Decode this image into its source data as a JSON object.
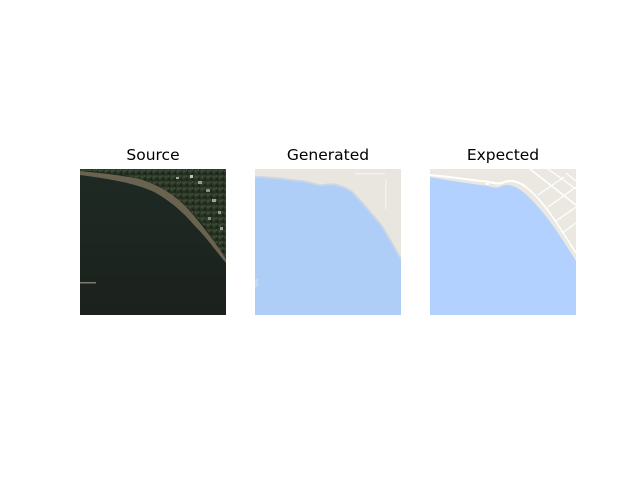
{
  "panels": [
    {
      "title": "Source",
      "kind": "satellite-image"
    },
    {
      "title": "Generated",
      "kind": "generated-map-tile"
    },
    {
      "title": "Expected",
      "kind": "target-map-tile"
    }
  ],
  "colors": {
    "water_map": "#b3d1ff",
    "land_map": "#ebe8e2",
    "road_map": "#ffffff",
    "water_satellite": "#1e2620",
    "vegetation_satellite": "#263222",
    "shore_satellite": "#6a6350"
  }
}
